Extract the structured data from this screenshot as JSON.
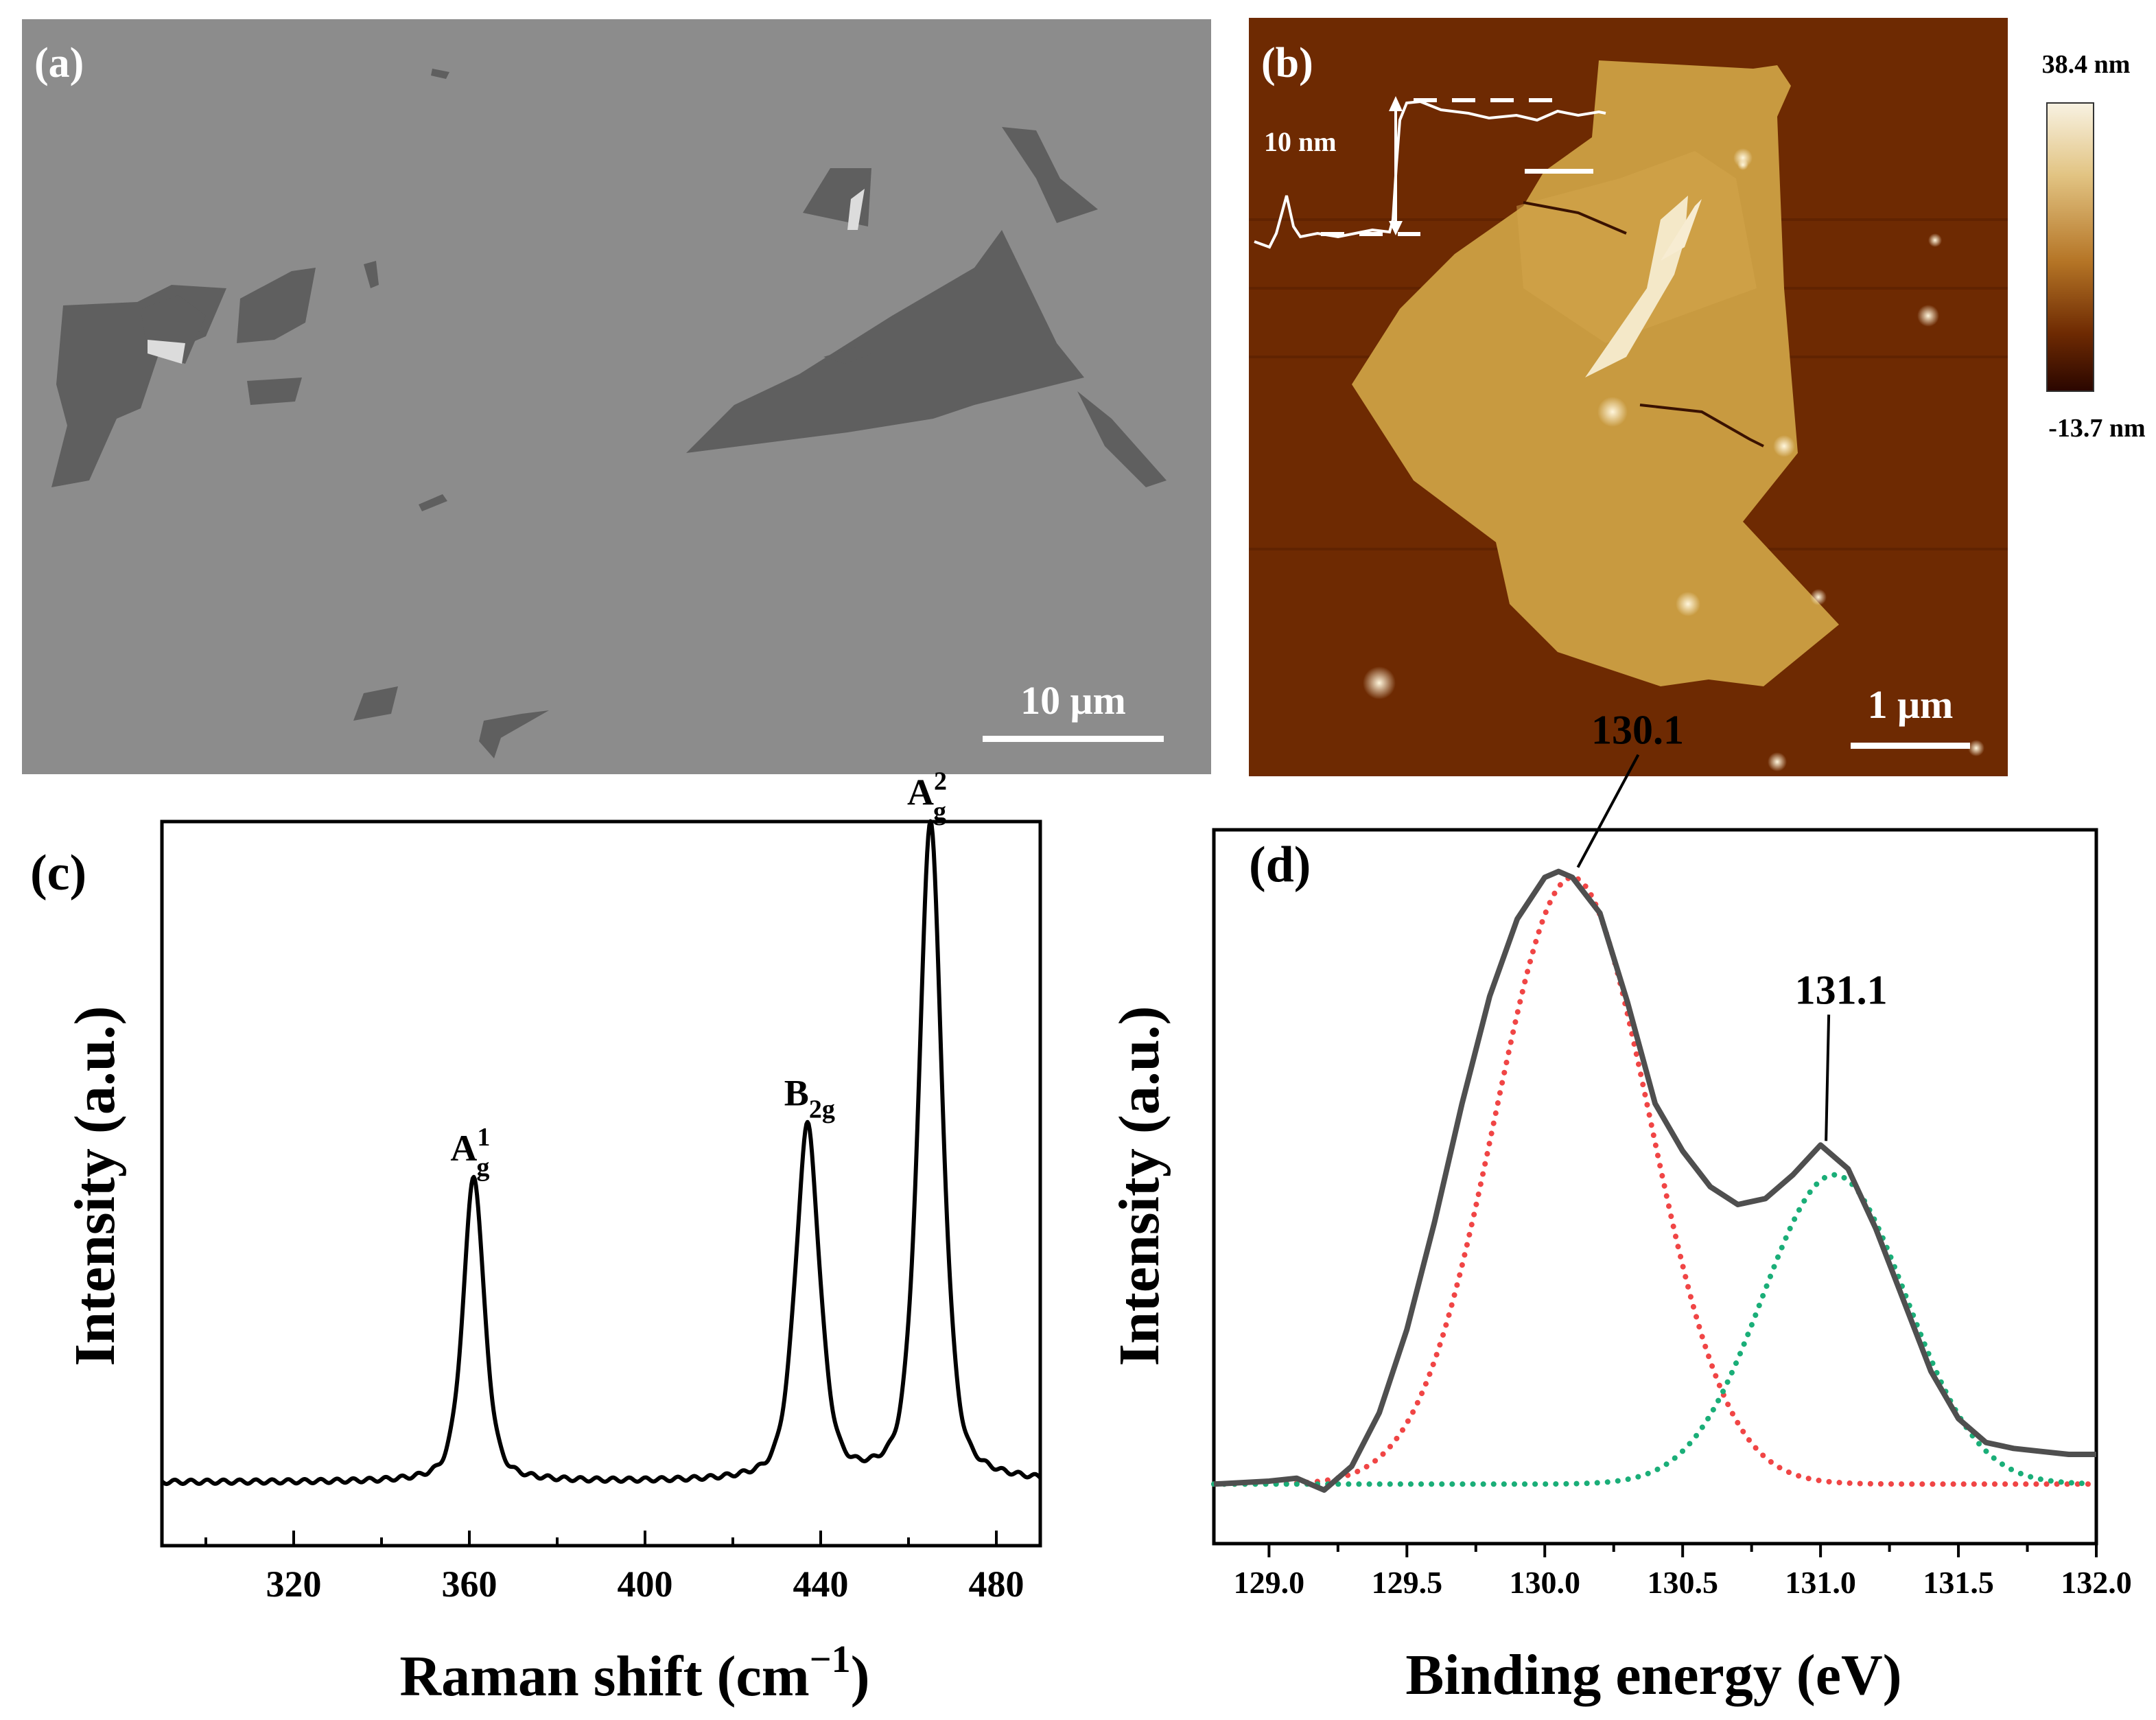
{
  "colors": {
    "sem_bg": "#8c8c8c",
    "sem_flake": "#5f5f5f",
    "afm_bg": "#6e2a02",
    "afm_flake": "#c89a40",
    "fit_red": "#f04545",
    "fit_green": "#1aae78",
    "envelope": "#4f4f4f"
  },
  "panel_a": {
    "label": "(a)",
    "scale_bar": "10 μm"
  },
  "panel_b": {
    "label": "(b)",
    "scale_bar": "1 μm",
    "step_height": "10 nm",
    "colorbar_max": "38.4 nm",
    "colorbar_min": "-13.7 nm"
  },
  "chart_data": [
    {
      "type": "line",
      "panel": "(c)",
      "xlabel": "Raman shift (cm",
      "xlabel_sup": "−1",
      "xlabel_close": ")",
      "ylabel": "Intensity (a.u.)",
      "xlim": [
        290,
        490
      ],
      "ylim": [
        -0.12,
        1.25
      ],
      "xticks": [
        320,
        360,
        400,
        440,
        480
      ],
      "baseline": 0.0,
      "peaks": [
        {
          "center": 361,
          "height": 0.58,
          "width": 2.6,
          "base": "A",
          "sub": "g",
          "sup": "1"
        },
        {
          "center": 437,
          "height": 0.67,
          "width": 3.0,
          "base": "B",
          "sub": "2g",
          "sup": ""
        },
        {
          "center": 465,
          "height": 1.25,
          "width": 2.9,
          "base": "A",
          "sub": "g",
          "sup": "2"
        }
      ]
    },
    {
      "type": "line",
      "panel": "(d)",
      "xlabel": "Binding energy (eV)",
      "ylabel": "Intensity (a.u.)",
      "xlim": [
        128.8,
        132.0
      ],
      "ylim": [
        -0.1,
        1.1
      ],
      "xticks": [
        "129.0",
        "129.5",
        "130.0",
        "130.5",
        "131.0",
        "131.5",
        "132.0"
      ],
      "series": [
        {
          "name": "envelope",
          "style": "solid",
          "x": [
            128.8,
            129.0,
            129.1,
            129.2,
            129.3,
            129.4,
            129.5,
            129.6,
            129.7,
            129.8,
            129.9,
            130.0,
            130.05,
            130.1,
            130.2,
            130.3,
            130.4,
            130.5,
            130.6,
            130.7,
            130.8,
            130.9,
            131.0,
            131.1,
            131.2,
            131.3,
            131.4,
            131.5,
            131.6,
            131.7,
            131.8,
            131.9,
            132.0
          ],
          "y": [
            0.0,
            0.005,
            0.01,
            -0.01,
            0.03,
            0.12,
            0.26,
            0.44,
            0.64,
            0.82,
            0.95,
            1.02,
            1.03,
            1.02,
            0.96,
            0.81,
            0.64,
            0.56,
            0.5,
            0.47,
            0.48,
            0.52,
            0.57,
            0.53,
            0.43,
            0.31,
            0.19,
            0.11,
            0.07,
            0.06,
            0.055,
            0.05,
            0.05
          ]
        },
        {
          "name": "peak 130.1 fit",
          "style": "dotted",
          "color": "#f04545",
          "center": 130.1,
          "amplitude": 1.02,
          "sigma": 0.28,
          "x_range": [
            128.8,
            132.0
          ]
        },
        {
          "name": "peak 131.1 fit",
          "style": "dotted",
          "color": "#1aae78",
          "center": 131.05,
          "amplitude": 0.52,
          "sigma": 0.26,
          "x_range": [
            128.8,
            131.95
          ]
        }
      ],
      "annotations": [
        {
          "text": "130.1",
          "x": 130.1,
          "y": 1.03
        },
        {
          "text": "131.1",
          "x": 131.0,
          "y": 0.57
        }
      ]
    }
  ]
}
